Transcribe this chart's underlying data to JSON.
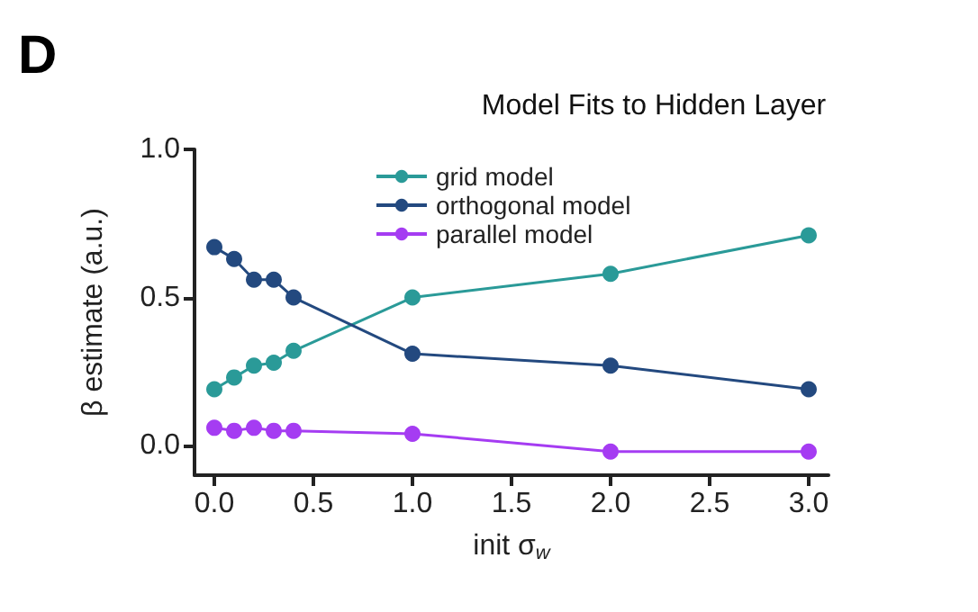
{
  "chart_data": {
    "type": "line",
    "title": "Model Fits to Hidden Layer",
    "xlabel": "init σ$_{w}$",
    "ylabel": "β estimate (a.u.)",
    "annotations": [
      "D"
    ],
    "x": [
      0,
      0.1,
      0.2,
      0.3,
      0.4,
      1.0,
      2.0,
      3.0
    ],
    "series": [
      {
        "name": "grid model",
        "color": "#2a9a98",
        "values": [
          0.19,
          0.23,
          0.27,
          0.28,
          0.32,
          0.5,
          0.58,
          0.71
        ]
      },
      {
        "name": "orthogonal model",
        "color": "#23497f",
        "values": [
          0.67,
          0.63,
          0.56,
          0.56,
          0.5,
          0.31,
          0.27,
          0.19
        ]
      },
      {
        "name": "parallel model",
        "color": "#a53cf2",
        "values": [
          0.06,
          0.05,
          0.06,
          0.05,
          0.05,
          0.04,
          -0.02,
          -0.02
        ]
      }
    ],
    "xlim": [
      -0.1,
      3.1
    ],
    "xticks": [
      {
        "value": 0,
        "label": "0.0"
      },
      0.5,
      {
        "value": 1,
        "label": "1.0"
      },
      1.5,
      {
        "value": 2,
        "label": "2.0"
      },
      2.5,
      {
        "value": 3,
        "label": "3.0"
      }
    ],
    "ylim": [
      -0.1,
      1.0
    ],
    "yticks": [
      {
        "value": 0,
        "label": "0.0"
      },
      0.5,
      {
        "value": 1,
        "label": "1.0"
      }
    ],
    "grid": false,
    "legend": "top",
    "marker": "circle",
    "line_style": "solid"
  }
}
